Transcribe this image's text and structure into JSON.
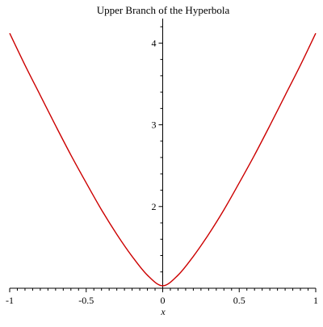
{
  "chart_data": {
    "type": "line",
    "title": "Upper Branch of the Hyperbola",
    "xlabel": "x",
    "ylabel": "",
    "xlim": [
      -1,
      1
    ],
    "ylim": [
      1,
      4.3
    ],
    "x_axis_at_y": 1,
    "y_axis_at_x": 0,
    "grid": false,
    "legend": "none",
    "x_ticks": [
      {
        "value": -1,
        "label": "-1"
      },
      {
        "value": -0.5,
        "label": "-0.5"
      },
      {
        "value": 0,
        "label": "0"
      },
      {
        "value": 0.5,
        "label": "0.5"
      },
      {
        "value": 1,
        "label": "1"
      }
    ],
    "y_ticks": [
      {
        "value": 2,
        "label": "2"
      },
      {
        "value": 3,
        "label": "3"
      },
      {
        "value": 4,
        "label": "4"
      }
    ],
    "series": [
      {
        "color": "#cc0000",
        "x": [
          -1,
          -0.9,
          -0.8,
          -0.7,
          -0.6,
          -0.5,
          -0.4,
          -0.3,
          -0.2,
          -0.1,
          0,
          0.1,
          0.2,
          0.3,
          0.4,
          0.5,
          0.6,
          0.7,
          0.8,
          0.9,
          1
        ],
        "y": [
          4.12,
          3.73,
          3.36,
          2.99,
          2.63,
          2.29,
          1.96,
          1.66,
          1.39,
          1.16,
          1.03,
          1.16,
          1.39,
          1.66,
          1.96,
          2.29,
          2.63,
          2.99,
          3.36,
          3.73,
          4.12
        ]
      }
    ]
  }
}
